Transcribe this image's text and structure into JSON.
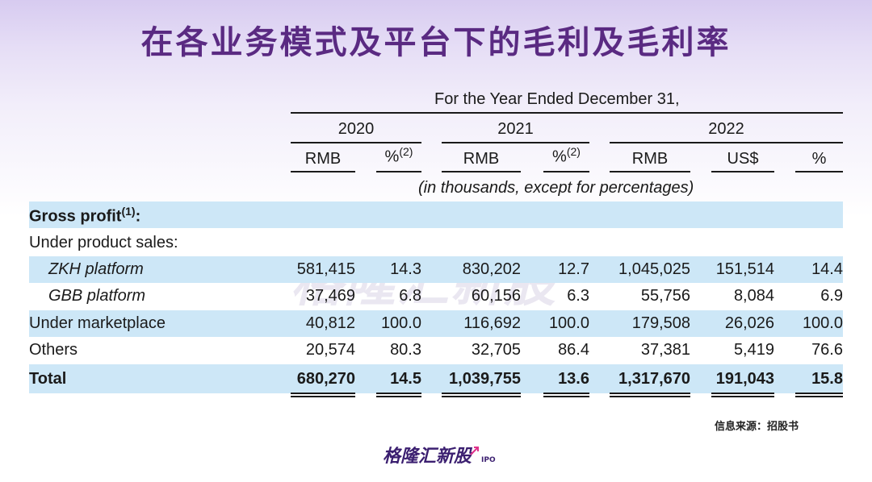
{
  "title": "在各业务模式及平台下的毛利及毛利率",
  "watermark": "格隆汇新股",
  "table": {
    "period_header": "For the Year Ended December 31,",
    "years": [
      "2020",
      "2021",
      "2022"
    ],
    "column_headers": [
      "RMB",
      "%",
      "RMB",
      "%",
      "RMB",
      "US$",
      "%"
    ],
    "footnote_mark": "(2)",
    "units_note": "(in thousands, except for percentages)",
    "section_label": "Gross profit",
    "section_footnote": "(1)",
    "section_colon": ":",
    "subsection_label": "Under product sales:",
    "rows": [
      {
        "label": "ZKH platform",
        "values": [
          "581,415",
          "14.3",
          "830,202",
          "12.7",
          "1,045,025",
          "151,514",
          "14.4"
        ]
      },
      {
        "label": "GBB platform",
        "values": [
          "37,469",
          "6.8",
          "60,156",
          "6.3",
          "55,756",
          "8,084",
          "6.9"
        ]
      },
      {
        "label": "Under marketplace",
        "values": [
          "40,812",
          "100.0",
          "116,692",
          "100.0",
          "179,508",
          "26,026",
          "100.0"
        ]
      },
      {
        "label": "Others",
        "values": [
          "20,574",
          "80.3",
          "32,705",
          "86.4",
          "37,381",
          "5,419",
          "76.6"
        ]
      },
      {
        "label": "Total",
        "values": [
          "680,270",
          "14.5",
          "1,039,755",
          "13.6",
          "1,317,670",
          "191,043",
          "15.8"
        ]
      }
    ]
  },
  "source_note": "信息来源：招股书",
  "footer_logo": "格隆汇新股",
  "footer_logo_sub": "IPO",
  "colors": {
    "title": "#5a2a82",
    "band": "#cde7f7",
    "logo": "#3b1f70"
  }
}
